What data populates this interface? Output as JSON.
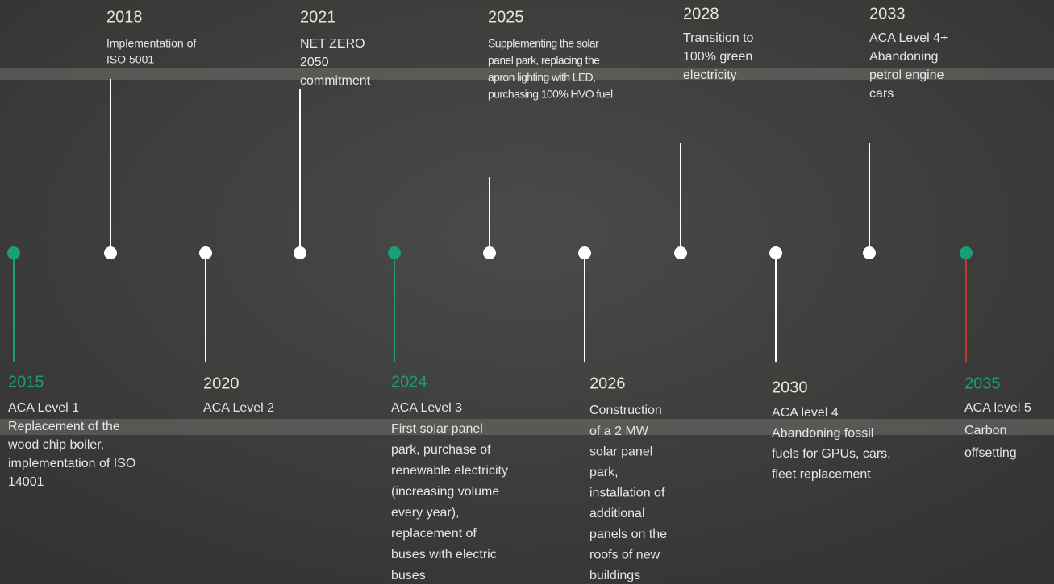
{
  "events": [
    {
      "year": "2015",
      "lines": [
        "ACA Level 1",
        "Replacement of the",
        "wood chip boiler,",
        "implementation of ISO",
        "14001"
      ],
      "color": "#1a9e7a",
      "stem_color": "#1a9e7a"
    },
    {
      "year": "2018",
      "lines": [
        "Implementation of",
        "ISO 5001"
      ],
      "color": "#ffffff",
      "stem_color": "#ffffff"
    },
    {
      "year": "2020",
      "lines": [
        "ACA Level 2"
      ],
      "color": "#ffffff",
      "stem_color": "#ffffff"
    },
    {
      "year": "2021",
      "lines": [
        "NET ZERO",
        "2050",
        "commitment"
      ],
      "color": "#ffffff",
      "stem_color": "#ffffff"
    },
    {
      "year": "2024",
      "lines": [
        "ACA Level 3",
        "First solar panel",
        "park, purchase of",
        "renewable electricity",
        "(increasing volume",
        "every year),",
        "replacement of",
        "buses with electric",
        "buses"
      ],
      "color": "#1a9e7a",
      "stem_color": "#1a9e7a"
    },
    {
      "year": "2025",
      "lines": [
        "Supplementing the solar",
        "panel park, replacing the",
        "apron lighting with LED,",
        "purchasing 100% HVO fuel"
      ],
      "color": "#ffffff",
      "stem_color": "#ffffff"
    },
    {
      "year": "2026",
      "lines": [
        "Construction",
        "of a 2 MW",
        "solar panel",
        "park,",
        "installation of",
        "additional",
        "panels on the",
        "roofs of new",
        "buildings"
      ],
      "color": "#ffffff",
      "stem_color": "#ffffff"
    },
    {
      "year": "2028",
      "lines": [
        "Transition to",
        "100% green",
        "electricity"
      ],
      "color": "#ffffff",
      "stem_color": "#ffffff"
    },
    {
      "year": "2030",
      "lines": [
        "ACA level 4",
        "Abandoning fossil",
        "fuels for GPUs, cars,",
        "fleet replacement"
      ],
      "color": "#ffffff",
      "stem_color": "#ffffff"
    },
    {
      "year": "2033",
      "lines": [
        "ACA Level 4+",
        "Abandoning",
        "petrol engine",
        "cars"
      ],
      "color": "#ffffff",
      "stem_color": "#ffffff"
    },
    {
      "year": "2035",
      "lines": [
        "ACA level 5",
        "Carbon",
        "offsetting"
      ],
      "color": "#1a9e7a",
      "stem_color": "#c0392b"
    }
  ]
}
